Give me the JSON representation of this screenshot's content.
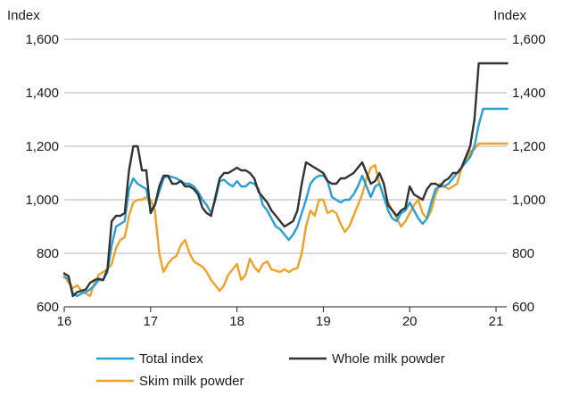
{
  "chart_data": {
    "type": "line",
    "y_unit_left": "Index",
    "y_unit_right": "Index",
    "ylim": [
      600,
      1600
    ],
    "yticks": [
      600,
      800,
      1000,
      1200,
      1400,
      1600
    ],
    "ytick_labels": [
      "600",
      "800",
      "1,000",
      "1,200",
      "1,400",
      "1,600"
    ],
    "xlim": [
      16,
      21.15
    ],
    "xticks": [
      16,
      17,
      18,
      19,
      20,
      21
    ],
    "xtick_labels": [
      "16",
      "17",
      "18",
      "19",
      "20",
      "21"
    ],
    "grid": true,
    "legend_position": "bottom",
    "series": [
      {
        "name": "Total index",
        "color": "#2a9fd6",
        "x": [
          16.0,
          16.05,
          16.1,
          16.15,
          16.2,
          16.25,
          16.3,
          16.35,
          16.4,
          16.45,
          16.5,
          16.55,
          16.6,
          16.65,
          16.7,
          16.75,
          16.8,
          16.85,
          16.9,
          16.95,
          17.0,
          17.05,
          17.1,
          17.15,
          17.2,
          17.25,
          17.3,
          17.35,
          17.4,
          17.45,
          17.5,
          17.55,
          17.6,
          17.65,
          17.7,
          17.75,
          17.8,
          17.85,
          17.9,
          17.95,
          18.0,
          18.05,
          18.1,
          18.15,
          18.2,
          18.25,
          18.3,
          18.35,
          18.4,
          18.45,
          18.5,
          18.55,
          18.6,
          18.65,
          18.7,
          18.75,
          18.8,
          18.85,
          18.9,
          18.95,
          19.0,
          19.05,
          19.1,
          19.15,
          19.2,
          19.25,
          19.3,
          19.35,
          19.4,
          19.45,
          19.5,
          19.55,
          19.6,
          19.65,
          19.7,
          19.75,
          19.8,
          19.85,
          19.9,
          19.95,
          20.0,
          20.05,
          20.1,
          20.15,
          20.2,
          20.25,
          20.3,
          20.35,
          20.4,
          20.45,
          20.5,
          20.55,
          20.6,
          20.65,
          20.7,
          20.75,
          20.8,
          20.85,
          20.9,
          20.95,
          21.0,
          21.05,
          21.1,
          21.13
        ],
        "values": [
          710,
          705,
          650,
          640,
          650,
          655,
          665,
          680,
          700,
          700,
          730,
          830,
          900,
          910,
          920,
          1040,
          1080,
          1060,
          1050,
          1040,
          960,
          980,
          1030,
          1080,
          1090,
          1085,
          1080,
          1070,
          1060,
          1060,
          1050,
          1030,
          1000,
          980,
          950,
          1000,
          1070,
          1075,
          1060,
          1050,
          1070,
          1050,
          1050,
          1065,
          1060,
          1040,
          980,
          960,
          930,
          900,
          890,
          870,
          850,
          870,
          900,
          950,
          1000,
          1060,
          1080,
          1090,
          1090,
          1070,
          1010,
          1000,
          990,
          1000,
          1000,
          1020,
          1050,
          1090,
          1050,
          1010,
          1050,
          1060,
          1010,
          960,
          930,
          920,
          950,
          960,
          990,
          960,
          930,
          910,
          930,
          990,
          1040,
          1050,
          1050,
          1060,
          1080,
          1100,
          1120,
          1140,
          1160,
          1200,
          1280,
          1340,
          1340,
          1340,
          1340,
          1340,
          1340,
          1340
        ]
      },
      {
        "name": "Whole milk powder",
        "color": "#333333",
        "x": [
          16.0,
          16.05,
          16.1,
          16.15,
          16.2,
          16.25,
          16.3,
          16.35,
          16.4,
          16.45,
          16.5,
          16.55,
          16.6,
          16.65,
          16.7,
          16.75,
          16.8,
          16.85,
          16.9,
          16.95,
          17.0,
          17.05,
          17.1,
          17.15,
          17.2,
          17.25,
          17.3,
          17.35,
          17.4,
          17.45,
          17.5,
          17.55,
          17.6,
          17.65,
          17.7,
          17.75,
          17.8,
          17.85,
          17.9,
          17.95,
          18.0,
          18.05,
          18.1,
          18.15,
          18.2,
          18.25,
          18.3,
          18.35,
          18.4,
          18.45,
          18.5,
          18.55,
          18.6,
          18.65,
          18.7,
          18.75,
          18.8,
          18.85,
          18.9,
          18.95,
          19.0,
          19.05,
          19.1,
          19.15,
          19.2,
          19.25,
          19.3,
          19.35,
          19.4,
          19.45,
          19.5,
          19.55,
          19.6,
          19.65,
          19.7,
          19.75,
          19.8,
          19.85,
          19.9,
          19.95,
          20.0,
          20.05,
          20.1,
          20.15,
          20.2,
          20.25,
          20.3,
          20.35,
          20.4,
          20.45,
          20.5,
          20.55,
          20.6,
          20.65,
          20.7,
          20.75,
          20.8,
          20.85,
          20.9,
          20.95,
          21.0,
          21.05,
          21.1,
          21.13
        ],
        "values": [
          725,
          715,
          640,
          655,
          660,
          665,
          690,
          700,
          705,
          700,
          740,
          920,
          940,
          940,
          950,
          1110,
          1200,
          1200,
          1110,
          1110,
          950,
          980,
          1050,
          1090,
          1090,
          1060,
          1060,
          1070,
          1050,
          1050,
          1040,
          1020,
          970,
          950,
          940,
          1010,
          1080,
          1100,
          1100,
          1110,
          1120,
          1110,
          1110,
          1100,
          1080,
          1030,
          1010,
          990,
          960,
          940,
          920,
          900,
          910,
          920,
          960,
          1060,
          1140,
          1130,
          1120,
          1110,
          1100,
          1070,
          1060,
          1060,
          1080,
          1080,
          1090,
          1100,
          1120,
          1140,
          1100,
          1060,
          1070,
          1100,
          1060,
          980,
          960,
          940,
          960,
          970,
          1050,
          1020,
          1010,
          1000,
          1040,
          1060,
          1060,
          1050,
          1070,
          1080,
          1100,
          1100,
          1120,
          1160,
          1200,
          1300,
          1510,
          1510,
          1510,
          1510,
          1510,
          1510,
          1510,
          1510
        ]
      },
      {
        "name": "Skim milk powder",
        "color": "#f0a126",
        "x": [
          16.0,
          16.05,
          16.1,
          16.15,
          16.2,
          16.25,
          16.3,
          16.35,
          16.4,
          16.45,
          16.5,
          16.55,
          16.6,
          16.65,
          16.7,
          16.75,
          16.8,
          16.85,
          16.9,
          16.95,
          17.0,
          17.05,
          17.1,
          17.15,
          17.2,
          17.25,
          17.3,
          17.35,
          17.4,
          17.45,
          17.5,
          17.55,
          17.6,
          17.65,
          17.7,
          17.75,
          17.8,
          17.85,
          17.9,
          17.95,
          18.0,
          18.05,
          18.1,
          18.15,
          18.2,
          18.25,
          18.3,
          18.35,
          18.4,
          18.45,
          18.5,
          18.55,
          18.6,
          18.65,
          18.7,
          18.75,
          18.8,
          18.85,
          18.9,
          18.95,
          19.0,
          19.05,
          19.1,
          19.15,
          19.2,
          19.25,
          19.3,
          19.35,
          19.4,
          19.45,
          19.5,
          19.55,
          19.6,
          19.65,
          19.7,
          19.75,
          19.8,
          19.85,
          19.9,
          19.95,
          20.0,
          20.05,
          20.1,
          20.15,
          20.2,
          20.25,
          20.3,
          20.35,
          20.4,
          20.45,
          20.5,
          20.55,
          20.6,
          20.65,
          20.7,
          20.75,
          20.8,
          20.85,
          20.9,
          20.95,
          21.0,
          21.05,
          21.1,
          21.13
        ],
        "values": [
          720,
          690,
          670,
          680,
          660,
          650,
          640,
          690,
          720,
          730,
          740,
          760,
          820,
          850,
          860,
          940,
          990,
          1000,
          1000,
          1010,
          1000,
          960,
          800,
          730,
          760,
          780,
          790,
          830,
          850,
          800,
          770,
          760,
          750,
          730,
          700,
          680,
          660,
          680,
          720,
          740,
          760,
          700,
          720,
          780,
          750,
          730,
          760,
          770,
          740,
          735,
          730,
          740,
          730,
          740,
          745,
          800,
          900,
          960,
          940,
          1000,
          1000,
          950,
          960,
          950,
          910,
          880,
          900,
          940,
          980,
          1020,
          1080,
          1120,
          1130,
          1060,
          1010,
          990,
          960,
          930,
          900,
          920,
          950,
          980,
          1000,
          950,
          930,
          960,
          1020,
          1060,
          1050,
          1040,
          1050,
          1060,
          1120,
          1140,
          1180,
          1190,
          1210,
          1210,
          1210,
          1210,
          1210,
          1210,
          1210,
          1210
        ]
      }
    ]
  }
}
